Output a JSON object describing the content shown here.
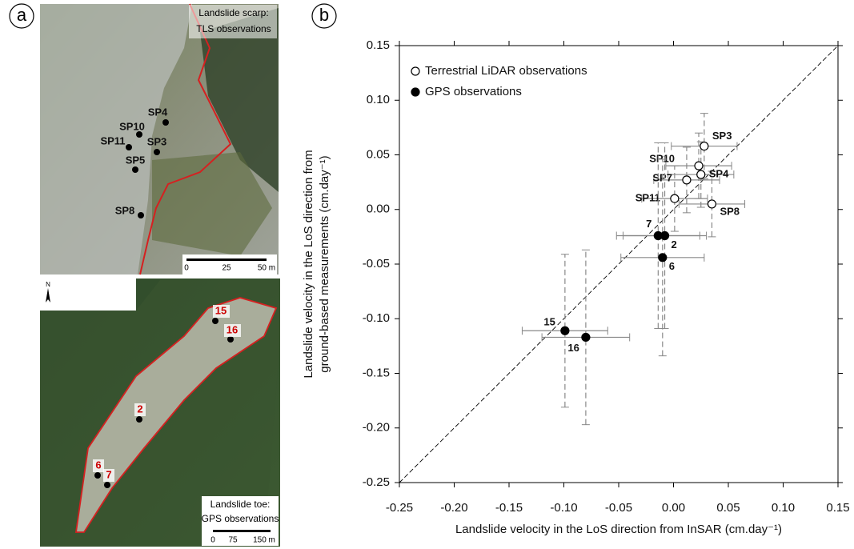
{
  "panel_a": {
    "panel_label": "a",
    "top_map": {
      "caption": [
        "Landslide scarp:",
        "TLS observations"
      ],
      "points": [
        "SP4",
        "SP10",
        "SP11",
        "SP3",
        "SP5",
        "SP8"
      ],
      "scale": [
        "0",
        "25",
        "50 m"
      ]
    },
    "bottom_map": {
      "north": "N",
      "caption": [
        "Landslide toe:",
        "GPS observations"
      ],
      "points": [
        "15",
        "16",
        "2",
        "6",
        "7"
      ],
      "scale": [
        "0",
        "75",
        "150 m"
      ]
    }
  },
  "chart_data": {
    "type": "scatter",
    "panel_label": "b",
    "x_label": "Landslide velocity in the LoS direction from InSAR (cm.day⁻¹)",
    "y_label": [
      "Landslide velocity in the LoS direction from",
      "ground-based measurements (cm.day⁻¹)"
    ],
    "xlim": [
      -0.25,
      0.15
    ],
    "ylim": [
      -0.25,
      0.15
    ],
    "xticks": [
      -0.25,
      {
        "value": -0.2,
        "label": "-0.20"
      },
      -0.15,
      {
        "value": -0.1,
        "label": "-0.10"
      },
      -0.05,
      {
        "value": 0,
        "label": "0.00"
      },
      0.05,
      {
        "value": 0.1,
        "label": "0.10"
      },
      0.15
    ],
    "yticks": [
      -0.25,
      {
        "value": -0.2,
        "label": "-0.20"
      },
      -0.15,
      {
        "value": -0.1,
        "label": "-0.10"
      },
      -0.05,
      {
        "value": 0,
        "label": "0.00"
      },
      0.05,
      {
        "value": 0.1,
        "label": "0.10"
      },
      0.15
    ],
    "legend": "upper left",
    "series": [
      {
        "name": "Terrestrial LiDAR observations",
        "marker": "open",
        "color": "#000000",
        "labels": [
          "SP3",
          "SP10",
          "SP4",
          "SP7",
          "SP11",
          "SP8"
        ],
        "x": [
          0.028,
          0.023,
          0.025,
          0.012,
          0.001,
          0.035
        ],
        "values": [
          0.058,
          0.04,
          0.032,
          0.027,
          0.01,
          0.005
        ],
        "xerr": [
          0.03,
          0.03,
          0.03,
          0.03,
          0.03,
          0.03
        ],
        "yerr": [
          0.03,
          0.03,
          0.03,
          0.03,
          0.03,
          0.03
        ]
      },
      {
        "name": "GPS observations",
        "marker": "filled",
        "color": "#000000",
        "labels": [
          "7",
          "2",
          "6",
          "15",
          "16"
        ],
        "x": [
          -0.014,
          -0.008,
          -0.01,
          -0.099,
          -0.08
        ],
        "values": [
          -0.024,
          -0.024,
          -0.044,
          -0.111,
          -0.117
        ],
        "xerr": [
          0.038,
          0.038,
          0.038,
          0.039,
          0.04
        ],
        "yerr": [
          0.085,
          0.085,
          0.09,
          0.07,
          0.08
        ]
      }
    ]
  }
}
